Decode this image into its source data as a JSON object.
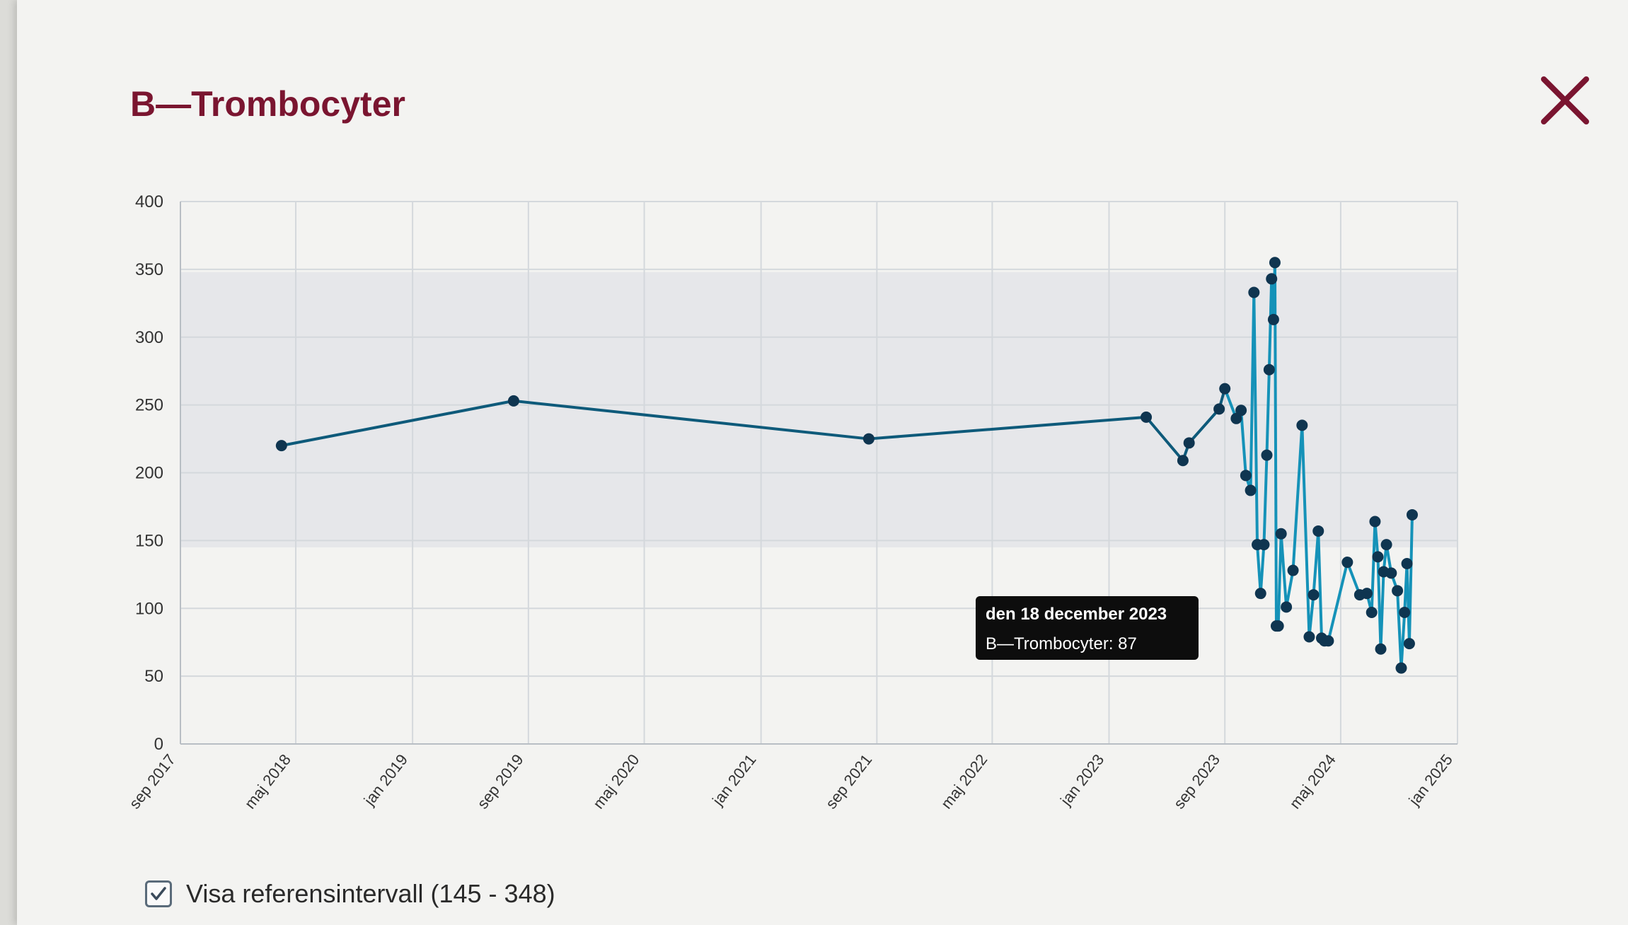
{
  "dialog": {
    "title": "B—Trombocyter",
    "close_icon": "close-icon"
  },
  "reference": {
    "checked": true,
    "label": "Visa referensintervall (145 - 348)",
    "low": 145,
    "high": 348
  },
  "tooltip": {
    "date": "den 18 december 2023",
    "label": "B—Trombocyter: 87"
  },
  "colors": {
    "title": "#7a1530",
    "line_old": "#0e5a7a",
    "line_recent": "#1592b8",
    "points": "#0f3550",
    "reference_band": "#e6e7ea",
    "close": "#7a1530"
  },
  "chart_data": {
    "type": "line",
    "series": [
      {
        "x": [
          "2018-04-01",
          "2019-08-01",
          "2021-08-15",
          "2023-03-20",
          "2023-06-05",
          "2023-06-18",
          "2023-08-20",
          "2023-09-01",
          "2023-09-25",
          "2023-10-05",
          "2023-10-15",
          "2023-10-25",
          "2023-11-01",
          "2023-11-08",
          "2023-11-15",
          "2023-11-22",
          "2023-11-28",
          "2023-12-03",
          "2023-12-08",
          "2023-12-12",
          "2023-12-15",
          "2023-12-18",
          "2023-12-22",
          "2023-12-28",
          "2024-01-08",
          "2024-01-22",
          "2024-02-10",
          "2024-02-25",
          "2024-03-05",
          "2024-03-15",
          "2024-03-22",
          "2024-03-28",
          "2024-04-05",
          "2024-05-15",
          "2024-06-10",
          "2024-06-25",
          "2024-07-05",
          "2024-07-12",
          "2024-07-18",
          "2024-07-24",
          "2024-07-30",
          "2024-08-05",
          "2024-08-15",
          "2024-08-28",
          "2024-09-05",
          "2024-09-12",
          "2024-09-17",
          "2024-09-22",
          "2024-09-28"
        ],
        "y": [
          220,
          253,
          225,
          241,
          209,
          222,
          247,
          262,
          240,
          246,
          198,
          187,
          333,
          147,
          111,
          147,
          213,
          276,
          343,
          313,
          355,
          87,
          87,
          155,
          101,
          128,
          235,
          79,
          110,
          157,
          78,
          76,
          76,
          134,
          110,
          111,
          97,
          164,
          138,
          70,
          127,
          147,
          126,
          113,
          56,
          97,
          133,
          74,
          169
        ]
      }
    ],
    "xlim": [
      "2017-09-01",
      "2025-01-01"
    ],
    "ylim": [
      0,
      400
    ],
    "yticks": [
      0,
      50,
      100,
      150,
      200,
      250,
      300,
      350,
      400
    ],
    "xtick_dates": [
      "2017-09-01",
      "2018-05-01",
      "2019-01-01",
      "2019-09-01",
      "2020-05-01",
      "2021-01-01",
      "2021-09-01",
      "2022-05-01",
      "2023-01-01",
      "2023-09-01",
      "2024-05-01",
      "2025-01-01"
    ],
    "xtick_labels": [
      "sep 2017",
      "maj 2018",
      "jan 2019",
      "sep 2019",
      "maj 2020",
      "jan 2021",
      "sep 2021",
      "maj 2022",
      "jan 2023",
      "sep 2023",
      "maj 2024",
      "jan 2025"
    ],
    "reference_band": [
      145,
      348
    ],
    "grid": true,
    "legend": "none",
    "highlighted_point": {
      "x": "2023-12-18",
      "y": 87
    }
  }
}
